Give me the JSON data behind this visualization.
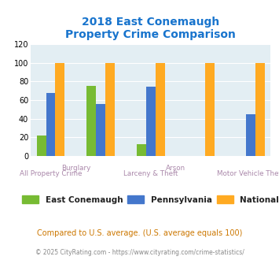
{
  "title": "2018 East Conemaugh\nProperty Crime Comparison",
  "title_color": "#1874CD",
  "east_conemaugh": [
    22,
    75,
    0,
    13,
    0,
    0,
    0
  ],
  "pennsylvania": [
    68,
    56,
    0,
    74,
    0,
    0,
    45
  ],
  "national": [
    100,
    100,
    0,
    100,
    0,
    100,
    100
  ],
  "colors": {
    "east_conemaugh": "#77BB33",
    "pennsylvania": "#4477CC",
    "national": "#FFAA22"
  },
  "ylim": [
    0,
    120
  ],
  "yticks": [
    0,
    20,
    40,
    60,
    80,
    100,
    120
  ],
  "legend_labels": [
    "East Conemaugh",
    "Pennsylvania",
    "National"
  ],
  "note": "Compared to U.S. average. (U.S. average equals 100)",
  "footer": "© 2025 CityRating.com - https://www.cityrating.com/crime-statistics/",
  "note_color": "#CC7700",
  "footer_color": "#888888",
  "bg_color": "#E3EEF3",
  "bar_width": 0.28
}
